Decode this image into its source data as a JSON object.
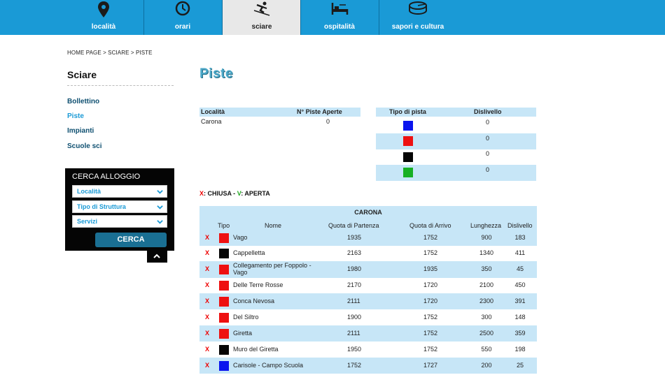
{
  "nav": [
    {
      "label": "località",
      "icon": "map-pin-icon"
    },
    {
      "label": "orari",
      "icon": "clock-icon"
    },
    {
      "label": "sciare",
      "icon": "skier-icon"
    },
    {
      "label": "ospitalità",
      "icon": "bed-icon"
    },
    {
      "label": "sapori e cultura",
      "icon": "cheese-icon"
    }
  ],
  "breadcrumb": "HOME PAGE > SCIARE > PISTE",
  "sidebar": {
    "title": "Sciare",
    "links": [
      "Bollettino",
      "Piste",
      "Impianti",
      "Scuole sci"
    ]
  },
  "cerca": {
    "title": "CERCA ALLOGGIO",
    "selects": [
      "Località",
      "Tipo di Struttura",
      "Servizi"
    ],
    "button": "CERCA"
  },
  "page_title": "Piste",
  "summary": {
    "headers": [
      "Località",
      "N° Piste Aperte"
    ],
    "rows": [
      {
        "localita": "Carona",
        "aperte": "0"
      }
    ]
  },
  "tipo": {
    "headers": [
      "Tipo di pista",
      "Dislivello"
    ],
    "rows": [
      {
        "color": "#0a14ee",
        "value": "0"
      },
      {
        "color": "#ee1111",
        "value": "0"
      },
      {
        "color": "#050505",
        "value": "0"
      },
      {
        "color": "#17b023",
        "value": "0"
      }
    ]
  },
  "legend": {
    "x": "X",
    "chiusa": ": CHIUSA - ",
    "v": "V",
    "aperta": ": APERTA"
  },
  "piste": {
    "title": "CARONA",
    "headers": [
      "Tipo",
      "Nome",
      "Quota di Partenza",
      "Quota di Arrivo",
      "Lunghezza",
      "Dislivello"
    ],
    "rows": [
      {
        "status": "X",
        "color": "#ee1111",
        "name": "Vago",
        "partenza": "1935",
        "arrivo": "1752",
        "lunghezza": "900",
        "dislivello": "183"
      },
      {
        "status": "X",
        "color": "#050505",
        "name": "Cappelletta",
        "partenza": "2163",
        "arrivo": "1752",
        "lunghezza": "1340",
        "dislivello": "411"
      },
      {
        "status": "X",
        "color": "#ee1111",
        "name": "Collegamento per Foppolo - Vago",
        "partenza": "1980",
        "arrivo": "1935",
        "lunghezza": "350",
        "dislivello": "45"
      },
      {
        "status": "X",
        "color": "#ee1111",
        "name": "Delle Terre Rosse",
        "partenza": "2170",
        "arrivo": "1720",
        "lunghezza": "2100",
        "dislivello": "450"
      },
      {
        "status": "X",
        "color": "#ee1111",
        "name": "Conca Nevosa",
        "partenza": "2111",
        "arrivo": "1720",
        "lunghezza": "2300",
        "dislivello": "391"
      },
      {
        "status": "X",
        "color": "#ee1111",
        "name": "Del Siltro",
        "partenza": "1900",
        "arrivo": "1752",
        "lunghezza": "300",
        "dislivello": "148"
      },
      {
        "status": "X",
        "color": "#ee1111",
        "name": "Giretta",
        "partenza": "2111",
        "arrivo": "1752",
        "lunghezza": "2500",
        "dislivello": "359"
      },
      {
        "status": "X",
        "color": "#050505",
        "name": "Muro del Giretta",
        "partenza": "1950",
        "arrivo": "1752",
        "lunghezza": "550",
        "dislivello": "198"
      },
      {
        "status": "X",
        "color": "#0a14ee",
        "name": "Carisole - Campo Scuola",
        "partenza": "1752",
        "arrivo": "1727",
        "lunghezza": "200",
        "dislivello": "25"
      }
    ]
  }
}
